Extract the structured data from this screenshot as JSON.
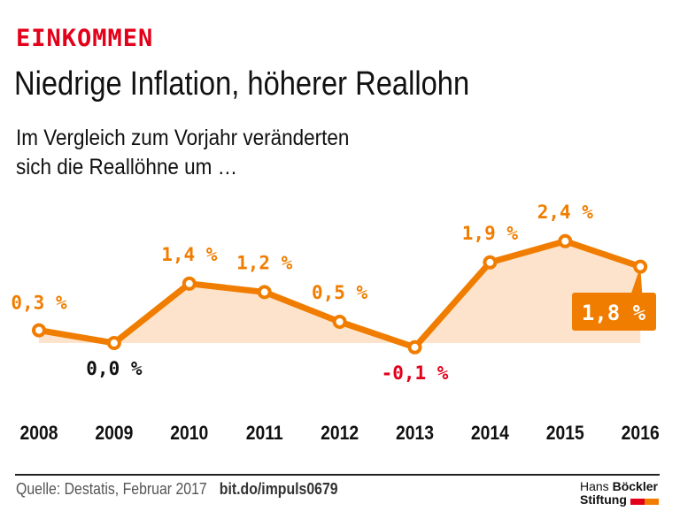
{
  "kicker": "EINKOMMEN",
  "title": "Niedrige Inflation, höherer Reallohn",
  "subtitle_line1": "Im Vergleich zum Vorjahr veränderten",
  "subtitle_line2": "sich die Reallöhne um …",
  "source": "Quelle: Destatis, Februar 2017",
  "link": "bit.do/impuls0679",
  "logo": {
    "line1a": "Hans ",
    "line1b": "Böckler",
    "line2": "Stiftung",
    "colors": [
      "#e2001a",
      "#f07d00"
    ]
  },
  "colors": {
    "line": "#f07d00",
    "fill": "#fde3cc",
    "positive_label": "#f07d00",
    "zero_label": "#111111",
    "negative_label": "#e2001a"
  },
  "chart_data": {
    "type": "line",
    "categories": [
      "2008",
      "2009",
      "2010",
      "2011",
      "2012",
      "2013",
      "2014",
      "2015",
      "2016"
    ],
    "values": [
      0.3,
      0.0,
      1.4,
      1.2,
      0.5,
      -0.1,
      1.9,
      2.4,
      1.8
    ],
    "data_labels": [
      "0,3 %",
      "0,0 %",
      "1,4 %",
      "1,2 %",
      "0,5 %",
      "-0,1 %",
      "1,9 %",
      "2,4 %",
      "1,8 %"
    ],
    "unit": "%",
    "highlight_index": 8,
    "area_fill": true,
    "grid": false
  }
}
